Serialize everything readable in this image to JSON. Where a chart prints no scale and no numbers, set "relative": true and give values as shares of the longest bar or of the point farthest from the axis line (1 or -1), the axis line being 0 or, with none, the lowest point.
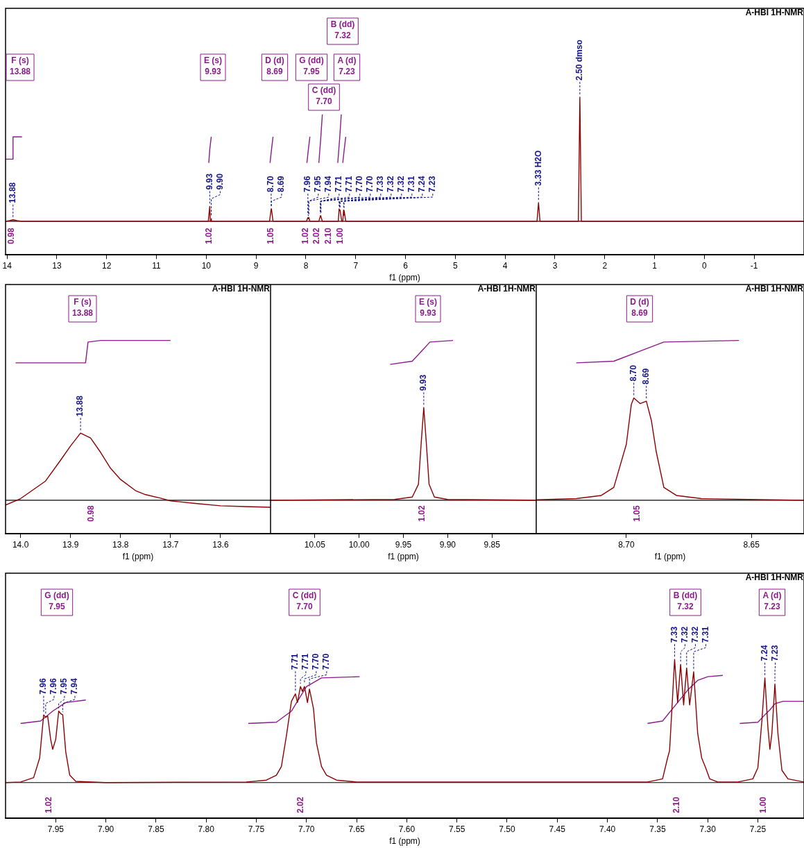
{
  "chart_data": [
    {
      "type": "line",
      "relative": true,
      "title": "A-HBI 1H-NMR",
      "xlabel": "f1 (ppm)",
      "xlim": [
        14.03,
        -2.0
      ],
      "xticks": [
        14,
        13,
        12,
        11,
        10,
        9,
        8,
        7,
        6,
        5,
        4,
        3,
        2,
        1,
        0,
        -1
      ],
      "series": [
        {
          "color": "#8b0000",
          "x": [
            14.03,
            13.95,
            13.88,
            13.8,
            13.7,
            9.96,
            9.93,
            9.92,
            9.905,
            9.9,
            9.895,
            8.73,
            8.697,
            8.6945,
            8.692,
            8.66,
            7.99,
            7.96,
            7.95,
            7.94,
            7.92,
            7.74,
            7.711,
            7.706,
            7.702,
            7.697,
            7.67,
            7.35,
            7.333,
            7.327,
            7.321,
            7.314,
            7.28,
            7.26,
            7.243,
            7.238,
            7.233,
            7.2,
            3.36,
            3.33,
            3.3,
            2.53,
            2.5,
            2.47,
            -2.0
          ],
          "values": [
            0,
            0.005,
            0.012,
            0.005,
            0,
            0,
            0.12,
            0,
            0,
            0.02,
            0,
            0,
            0.1,
            0.09,
            0.1,
            0,
            0,
            0.03,
            0.02,
            0.03,
            0,
            0,
            0.04,
            0.045,
            0.045,
            0.04,
            0,
            0,
            0.1,
            0.09,
            0.09,
            0.09,
            0,
            0,
            0.09,
            0.05,
            0.085,
            0,
            0,
            0.15,
            0,
            0,
            1.0,
            0,
            0
          ]
        },
        {
          "color": "#8b1a8b",
          "x": [
            14.03,
            13.89,
            13.88,
            13.7,
            13.69,
            9.95,
            9.93,
            9.9,
            9.89,
            8.72,
            8.69,
            8.66,
            8.65,
            7.98,
            7.95,
            7.92,
            7.91,
            7.74,
            7.7,
            7.67,
            7.66,
            7.36,
            7.32,
            7.29,
            7.28,
            7.26,
            7.23,
            7.2
          ],
          "values": [
            0.5,
            0.5,
            0.68,
            0.68,
            null,
            0.47,
            0.58,
            0.68,
            null,
            0.47,
            0.58,
            0.68,
            null,
            0.47,
            0.58,
            0.68,
            null,
            0.47,
            0.68,
            0.86,
            null,
            0.47,
            0.68,
            0.86,
            null,
            0.47,
            0.58,
            0.68
          ]
        }
      ],
      "annotations": [
        "F (s)\n13.88",
        "E (s)\n9.93",
        "D (d)\n8.69",
        "G (dd)\n7.95",
        "A (d)\n7.23",
        "B (dd)\n7.32",
        "C (dd)\n7.70",
        {
          "text": "13.88",
          "x": 13.88,
          "y": 0.012
        },
        {
          "text": "9.93",
          "x": 9.93,
          "y": 0.12
        },
        {
          "text": "9.90",
          "x": 9.9,
          "y": 0.02
        },
        {
          "text": "8.70",
          "x": 8.697,
          "y": 0.1
        },
        {
          "text": "8.69",
          "x": 8.692,
          "y": 0.1
        },
        {
          "text": "7.96",
          "x": 7.96,
          "y": 0.03
        },
        {
          "text": "7.95",
          "x": 7.95,
          "y": 0.02
        },
        {
          "text": "7.94",
          "x": 7.94,
          "y": 0.03
        },
        {
          "text": "7.71",
          "x": 7.711,
          "y": 0.04
        },
        {
          "text": "7.71",
          "x": 7.706,
          "y": 0.045
        },
        {
          "text": "7.70",
          "x": 7.702,
          "y": 0.045
        },
        {
          "text": "7.70",
          "x": 7.697,
          "y": 0.04
        },
        {
          "text": "7.33",
          "x": 7.333,
          "y": 0.1
        },
        {
          "text": "7.32",
          "x": 7.327,
          "y": 0.09
        },
        {
          "text": "7.32",
          "x": 7.321,
          "y": 0.09
        },
        {
          "text": "7.31",
          "x": 7.314,
          "y": 0.09
        },
        {
          "text": "7.24",
          "x": 7.243,
          "y": 0.09
        },
        {
          "text": "7.23",
          "x": 7.233,
          "y": 0.085
        },
        {
          "text": "3.33 H2O",
          "x": 3.33,
          "y": 0.15
        },
        {
          "text": "2.50 dmso",
          "x": 2.5,
          "y": 1.0
        },
        "0.98",
        "1.02",
        "1.05",
        "1.02",
        "2.02",
        "2.10",
        "1.00"
      ]
    },
    {
      "type": "line",
      "relative": true,
      "title": "A-HBI 1H-NMR",
      "xlabel": "f1 (ppm)",
      "xlim": [
        14.03,
        13.5
      ],
      "xticks": [
        {
          "value": 14,
          "label": "14.0"
        },
        13.9,
        13.8,
        13.7,
        13.6
      ],
      "series": [
        {
          "color": "#8b0000",
          "x": [
            14.03,
            14.0,
            13.95,
            13.92,
            13.9,
            13.88,
            13.86,
            13.84,
            13.82,
            13.8,
            13.77,
            13.75,
            13.72,
            13.7,
            13.65,
            13.6,
            13.55,
            13.5
          ],
          "values": [
            -0.03,
            0.01,
            0.12,
            0.25,
            0.34,
            0.42,
            0.39,
            0.3,
            0.2,
            0.13,
            0.06,
            0.035,
            0.013,
            -0.004,
            -0.02,
            -0.035,
            -0.04,
            -0.044
          ]
        },
        {
          "color": "#8b1a8b",
          "x": [
            14.01,
            13.87,
            13.865,
            13.84,
            13.7
          ],
          "values": [
            0.86,
            0.86,
            0.99,
            1.0,
            1.0
          ]
        }
      ],
      "annotations": [
        "F (s)\n13.88",
        {
          "text": "13.88",
          "x": 13.88,
          "y": 0.42
        },
        "0.98"
      ]
    },
    {
      "type": "line",
      "relative": true,
      "title": "A-HBI 1H-NMR",
      "xlabel": "f1 (ppm)",
      "xlim": [
        10.1,
        9.8
      ],
      "xticks": [
        10.05,
        {
          "value": 10,
          "label": "10.00"
        },
        9.95,
        {
          "value": 9.9,
          "label": "9.90"
        },
        9.85
      ],
      "series": [
        {
          "color": "#8b0000",
          "x": [
            10.1,
            9.96,
            9.94,
            9.933,
            9.93,
            9.927,
            9.924,
            9.921,
            9.915,
            9.9,
            9.8
          ],
          "values": [
            0,
            0.005,
            0.02,
            0.1,
            0.35,
            0.58,
            0.35,
            0.1,
            0.02,
            0.005,
            0
          ]
        },
        {
          "color": "#8b1a8b",
          "x": [
            9.965,
            9.94,
            9.93,
            9.92,
            9.894
          ],
          "values": [
            0.85,
            0.87,
            0.93,
            0.99,
            1.0
          ]
        }
      ],
      "annotations": [
        "E (s)\n9.93",
        {
          "text": "9.93",
          "x": 9.927,
          "y": 0.58
        },
        "1.02"
      ]
    },
    {
      "type": "line",
      "relative": true,
      "title": "A-HBI 1H-NMR",
      "xlabel": "f1 (ppm)",
      "xlim": [
        8.736,
        8.629
      ],
      "xticks": [
        {
          "value": 8.7,
          "label": "8.70"
        },
        8.65
      ],
      "series": [
        {
          "color": "#8b0000",
          "x": [
            8.736,
            8.72,
            8.71,
            8.705,
            8.7,
            8.698,
            8.697,
            8.6945,
            8.692,
            8.69,
            8.688,
            8.685,
            8.68,
            8.67,
            8.629
          ],
          "values": [
            0.003,
            0.01,
            0.03,
            0.08,
            0.35,
            0.6,
            0.64,
            0.605,
            0.62,
            0.5,
            0.3,
            0.08,
            0.03,
            0.01,
            0
          ]
        },
        {
          "color": "#8b1a8b",
          "x": [
            8.72,
            8.705,
            8.695,
            8.685,
            8.655
          ],
          "values": [
            0.86,
            0.87,
            0.93,
            0.99,
            1.0
          ]
        }
      ],
      "annotations": [
        "D (d)\n8.69",
        {
          "text": "8.70",
          "x": 8.697,
          "y": 0.64
        },
        {
          "text": "8.69",
          "x": 8.692,
          "y": 0.62
        },
        "1.05"
      ]
    },
    {
      "type": "line",
      "relative": true,
      "title": "A-HBI 1H-NMR",
      "xlabel": "f1 (ppm)",
      "xlim": [
        8.0,
        7.204
      ],
      "xticks": [
        7.95,
        {
          "value": 7.9,
          "label": "7.90"
        },
        7.85,
        {
          "value": 7.8,
          "label": "7.80"
        },
        7.75,
        {
          "value": 7.7,
          "label": "7.70"
        },
        7.65,
        {
          "value": 7.6,
          "label": "7.60"
        },
        7.55,
        {
          "value": 7.5,
          "label": "7.50"
        },
        7.45,
        {
          "value": 7.4,
          "label": "7.40"
        },
        7.35,
        {
          "value": 7.3,
          "label": "7.30"
        },
        7.25
      ],
      "series": [
        {
          "color": "#8b0000",
          "x": [
            8.0,
            7.985,
            7.972,
            7.966,
            7.962,
            7.96,
            7.958,
            7.955,
            7.953,
            7.95,
            7.947,
            7.945,
            7.943,
            7.94,
            7.936,
            7.93,
            7.9,
            7.76,
            7.74,
            7.73,
            7.725,
            7.72,
            7.715,
            7.711,
            7.709,
            7.706,
            7.704,
            7.702,
            7.699,
            7.697,
            7.693,
            7.69,
            7.685,
            7.68,
            7.67,
            7.65,
            7.36,
            7.345,
            7.34,
            7.338,
            7.335,
            7.333,
            7.33,
            7.327,
            7.324,
            7.321,
            7.318,
            7.314,
            7.31,
            7.306,
            7.302,
            7.298,
            7.29,
            7.27,
            7.255,
            7.25,
            7.246,
            7.243,
            7.24,
            7.238,
            7.236,
            7.233,
            7.23,
            7.226,
            7.22,
            7.204
          ],
          "values": [
            0,
            0.005,
            0.04,
            0.2,
            0.55,
            0.53,
            0.54,
            0.35,
            0.27,
            0.35,
            0.58,
            0.56,
            0.55,
            0.25,
            0.06,
            0.01,
            0,
            0.005,
            0.02,
            0.06,
            0.13,
            0.38,
            0.66,
            0.72,
            0.65,
            0.78,
            0.74,
            0.78,
            0.65,
            0.76,
            0.6,
            0.32,
            0.13,
            0.06,
            0.02,
            0.005,
            0.005,
            0.03,
            0.2,
            0.26,
            0.7,
            1.0,
            0.65,
            0.96,
            0.63,
            0.93,
            0.63,
            0.9,
            0.4,
            0.2,
            0.12,
            0.03,
            0.005,
            0.005,
            0.03,
            0.12,
            0.5,
            0.85,
            0.45,
            0.27,
            0.4,
            0.8,
            0.4,
            0.1,
            0.03,
            0.005
          ]
        },
        {
          "color": "#8b1a8b",
          "x": [
            7.985,
            7.965,
            7.953,
            7.94,
            7.92,
            7.91,
            7.758,
            7.73,
            7.715,
            7.7,
            7.685,
            7.647,
            7.64,
            7.36,
            7.345,
            7.33,
            7.32,
            7.31,
            7.3,
            7.285,
            7.28,
            7.268,
            7.25,
            7.243,
            7.238,
            7.233,
            7.225,
            7.204
          ],
          "values": [
            0.48,
            0.5,
            0.58,
            0.65,
            0.67,
            null,
            0.48,
            0.49,
            0.58,
            0.78,
            0.85,
            0.86,
            null,
            0.48,
            0.5,
            0.65,
            0.75,
            0.83,
            0.86,
            0.87,
            null,
            0.48,
            0.49,
            0.55,
            0.59,
            0.64,
            0.66,
            0.66
          ]
        }
      ],
      "annotations": [
        "G (dd)\n7.95",
        "C (dd)\n7.70",
        "B (dd)\n7.32",
        "A (d)\n7.23",
        {
          "text": "7.96",
          "x": 7.962,
          "y": 0.55
        },
        {
          "text": "7.96",
          "x": 7.96,
          "y": 0.53
        },
        {
          "text": "7.95",
          "x": 7.947,
          "y": 0.58
        },
        {
          "text": "7.94",
          "x": 7.943,
          "y": 0.55
        },
        {
          "text": "7.71",
          "x": 7.711,
          "y": 0.72
        },
        {
          "text": "7.71",
          "x": 7.706,
          "y": 0.78
        },
        {
          "text": "7.70",
          "x": 7.702,
          "y": 0.78
        },
        {
          "text": "7.70",
          "x": 7.697,
          "y": 0.76
        },
        {
          "text": "7.33",
          "x": 7.333,
          "y": 1.0
        },
        {
          "text": "7.32",
          "x": 7.327,
          "y": 0.96
        },
        {
          "text": "7.32",
          "x": 7.321,
          "y": 0.93
        },
        {
          "text": "7.31",
          "x": 7.314,
          "y": 0.9
        },
        {
          "text": "7.24",
          "x": 7.243,
          "y": 0.85
        },
        {
          "text": "7.23",
          "x": 7.233,
          "y": 0.8
        },
        "1.02",
        "2.02",
        "2.10",
        "1.00"
      ]
    }
  ]
}
